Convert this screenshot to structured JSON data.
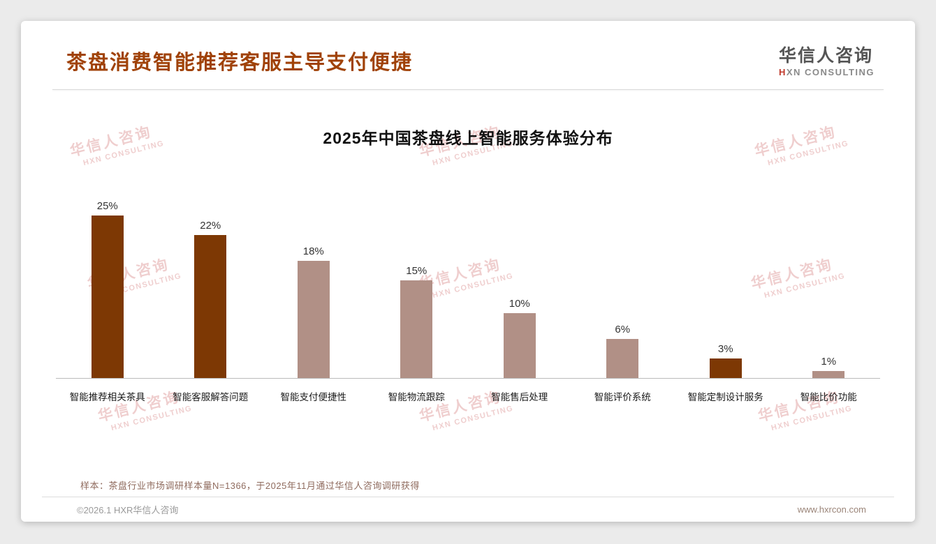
{
  "header": {
    "title": "茶盘消费智能推荐客服主导支付便捷",
    "logo_cn": "华信人咨询",
    "logo_en_first": "H",
    "logo_en_rest": "XN CONSULTING"
  },
  "watermark": {
    "cn": "华信人咨询",
    "en": "HXN CONSULTING"
  },
  "chart_data": {
    "type": "bar",
    "title": "2025年中国茶盘线上智能服务体验分布",
    "categories": [
      "智能推荐相关茶具",
      "智能客服解答问题",
      "智能支付便捷性",
      "智能物流跟踪",
      "智能售后处理",
      "智能评价系统",
      "智能定制设计服务",
      "智能比价功能"
    ],
    "values": [
      25,
      22,
      18,
      15,
      10,
      6,
      3,
      1
    ],
    "value_labels": [
      "25%",
      "22%",
      "18%",
      "15%",
      "10%",
      "6%",
      "3%",
      "1%"
    ],
    "bar_colors": [
      "#7d3804",
      "#7d3804",
      "#b19086",
      "#b19086",
      "#b19086",
      "#b19086",
      "#7d3804",
      "#b19086"
    ],
    "xlabel": "",
    "ylabel": "",
    "ylim": [
      0,
      27
    ],
    "grid": false,
    "legend": null
  },
  "note": "样本：茶盘行业市场调研样本量N=1366，于2025年11月通过华信人咨询调研获得",
  "footer": {
    "left": "©2026.1 HXR华信人咨询",
    "right": "www.hxrcon.com"
  },
  "colors": {
    "accent": "#a04208",
    "dark_bar": "#7d3804",
    "light_bar": "#b19086",
    "watermark": "#dd9595"
  }
}
